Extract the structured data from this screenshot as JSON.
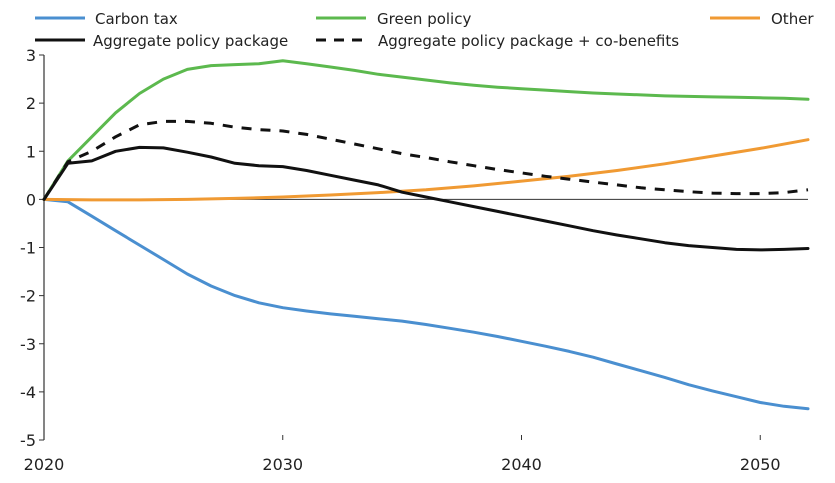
{
  "chart_data": {
    "type": "line",
    "title": "",
    "xlabel": "",
    "ylabel": "",
    "xlim": [
      2020,
      2052
    ],
    "ylim": [
      -5,
      3
    ],
    "x_ticks": [
      2020,
      2030,
      2040,
      2050
    ],
    "y_ticks": [
      3,
      2,
      1,
      0,
      -1,
      -2,
      -3,
      -4,
      -5
    ],
    "grid": false,
    "legend_position": "top",
    "series": [
      {
        "name": "Carbon tax",
        "color": "#4a8fd0",
        "style": "solid",
        "x": [
          2020,
          2021,
          2022,
          2023,
          2024,
          2025,
          2026,
          2027,
          2028,
          2029,
          2030,
          2031,
          2032,
          2033,
          2034,
          2035,
          2036,
          2037,
          2038,
          2039,
          2040,
          2041,
          2042,
          2043,
          2044,
          2045,
          2046,
          2047,
          2048,
          2049,
          2050,
          2051,
          2052
        ],
        "y": [
          0,
          -0.05,
          -0.35,
          -0.65,
          -0.95,
          -1.25,
          -1.55,
          -1.8,
          -2.0,
          -2.15,
          -2.25,
          -2.32,
          -2.38,
          -2.43,
          -2.48,
          -2.53,
          -2.6,
          -2.68,
          -2.76,
          -2.85,
          -2.95,
          -3.05,
          -3.16,
          -3.28,
          -3.42,
          -3.56,
          -3.7,
          -3.85,
          -3.98,
          -4.1,
          -4.22,
          -4.3,
          -4.35
        ]
      },
      {
        "name": "Green policy",
        "color": "#5cb94e",
        "style": "solid",
        "x": [
          2020,
          2021,
          2022,
          2023,
          2024,
          2025,
          2026,
          2027,
          2028,
          2029,
          2030,
          2031,
          2032,
          2033,
          2034,
          2035,
          2036,
          2037,
          2038,
          2039,
          2040,
          2041,
          2042,
          2043,
          2044,
          2045,
          2046,
          2047,
          2048,
          2049,
          2050,
          2051,
          2052
        ],
        "y": [
          0,
          0.8,
          1.3,
          1.8,
          2.2,
          2.5,
          2.7,
          2.78,
          2.8,
          2.82,
          2.88,
          2.82,
          2.75,
          2.68,
          2.6,
          2.54,
          2.48,
          2.42,
          2.37,
          2.33,
          2.3,
          2.27,
          2.24,
          2.21,
          2.19,
          2.17,
          2.15,
          2.14,
          2.13,
          2.12,
          2.11,
          2.1,
          2.08
        ]
      },
      {
        "name": "Other",
        "color": "#f09a33",
        "style": "solid",
        "x": [
          2020,
          2022,
          2024,
          2026,
          2028,
          2030,
          2032,
          2034,
          2036,
          2038,
          2040,
          2042,
          2044,
          2046,
          2048,
          2050,
          2052
        ],
        "y": [
          0,
          -0.01,
          -0.01,
          0.0,
          0.02,
          0.05,
          0.09,
          0.14,
          0.2,
          0.28,
          0.38,
          0.48,
          0.6,
          0.74,
          0.9,
          1.06,
          1.24
        ]
      },
      {
        "name": "Aggregate policy package",
        "color": "#111111",
        "style": "solid",
        "x": [
          2020,
          2021,
          2022,
          2023,
          2024,
          2025,
          2026,
          2027,
          2028,
          2029,
          2030,
          2031,
          2032,
          2033,
          2034,
          2035,
          2036,
          2037,
          2038,
          2039,
          2040,
          2041,
          2042,
          2043,
          2044,
          2045,
          2046,
          2047,
          2048,
          2049,
          2050,
          2051,
          2052
        ],
        "y": [
          0,
          0.75,
          0.8,
          1.0,
          1.08,
          1.07,
          0.98,
          0.88,
          0.75,
          0.7,
          0.68,
          0.6,
          0.5,
          0.4,
          0.3,
          0.15,
          0.05,
          -0.05,
          -0.15,
          -0.25,
          -0.35,
          -0.45,
          -0.55,
          -0.65,
          -0.74,
          -0.82,
          -0.9,
          -0.96,
          -1.0,
          -1.04,
          -1.05,
          -1.04,
          -1.02
        ]
      },
      {
        "name": "Aggregate policy package + co-benefits",
        "color": "#111111",
        "style": "dashed",
        "x": [
          2020,
          2021,
          2022,
          2023,
          2024,
          2025,
          2026,
          2027,
          2028,
          2029,
          2030,
          2031,
          2032,
          2033,
          2034,
          2035,
          2036,
          2037,
          2038,
          2039,
          2040,
          2041,
          2042,
          2043,
          2044,
          2045,
          2046,
          2047,
          2048,
          2049,
          2050,
          2051,
          2052
        ],
        "y": [
          0,
          0.78,
          1.0,
          1.3,
          1.55,
          1.62,
          1.62,
          1.58,
          1.5,
          1.45,
          1.42,
          1.35,
          1.25,
          1.15,
          1.05,
          0.95,
          0.87,
          0.78,
          0.7,
          0.62,
          0.55,
          0.48,
          0.42,
          0.36,
          0.3,
          0.24,
          0.2,
          0.16,
          0.13,
          0.12,
          0.12,
          0.14,
          0.2
        ]
      }
    ]
  }
}
